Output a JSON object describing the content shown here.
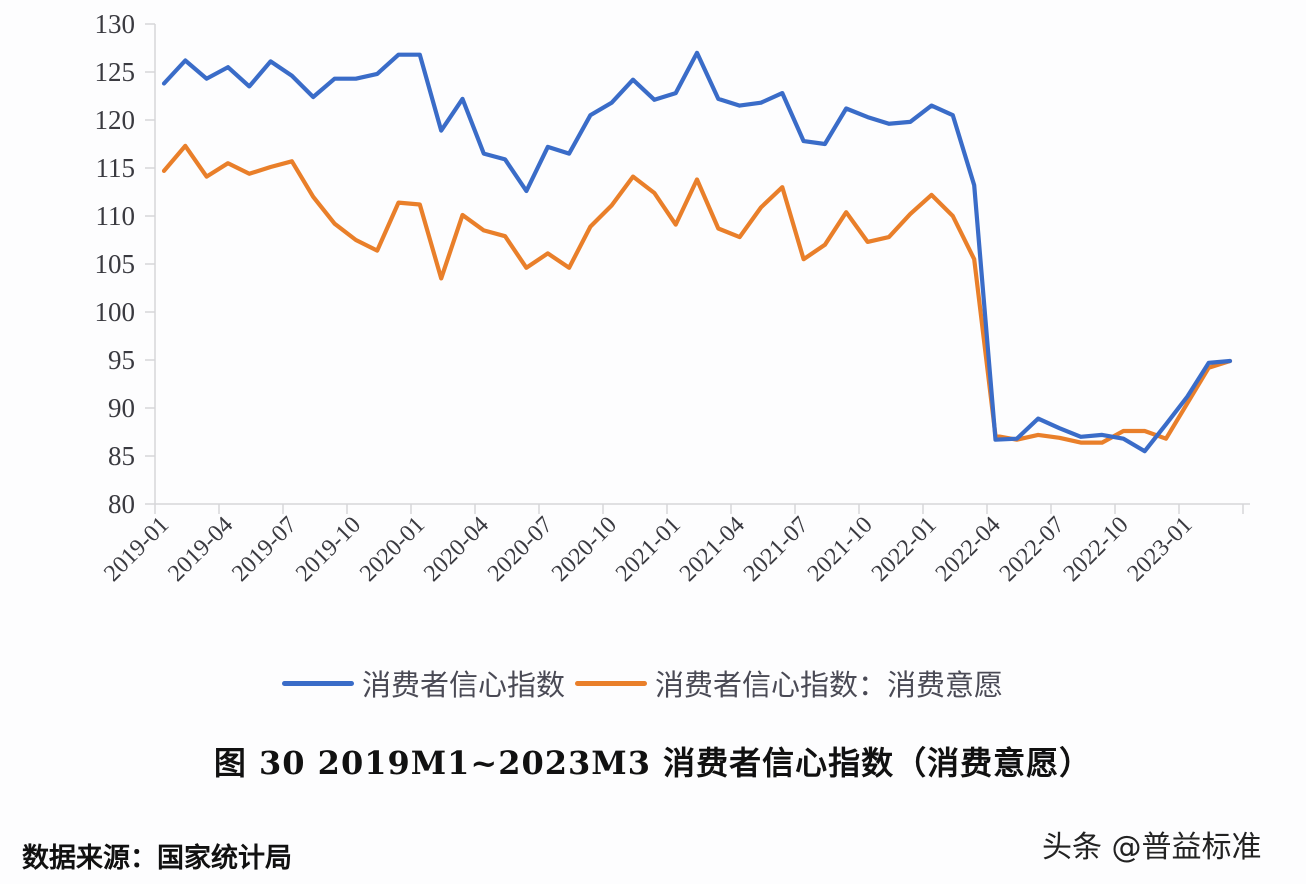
{
  "chart_data": {
    "type": "line",
    "title": "图 30   2019M1~2023M3 消费者信心指数（消费意愿）",
    "xlabel": "",
    "ylabel": "",
    "ylim": [
      80,
      130
    ],
    "yticks": [
      80,
      85,
      90,
      95,
      100,
      105,
      110,
      115,
      120,
      125,
      130
    ],
    "grid": false,
    "legend_position": "bottom",
    "x_tick_labels": [
      "2019-01",
      "2019-04",
      "2019-07",
      "2019-10",
      "2020-01",
      "2020-04",
      "2020-07",
      "2020-10",
      "2021-01",
      "2021-04",
      "2021-07",
      "2021-10",
      "2022-01",
      "2022-04",
      "2022-07",
      "2022-10",
      "2023-01"
    ],
    "x": [
      "2019-01",
      "2019-02",
      "2019-03",
      "2019-04",
      "2019-05",
      "2019-06",
      "2019-07",
      "2019-08",
      "2019-09",
      "2019-10",
      "2019-11",
      "2019-12",
      "2020-01",
      "2020-02",
      "2020-03",
      "2020-04",
      "2020-05",
      "2020-06",
      "2020-07",
      "2020-08",
      "2020-09",
      "2020-10",
      "2020-11",
      "2020-12",
      "2021-01",
      "2021-02",
      "2021-03",
      "2021-04",
      "2021-05",
      "2021-06",
      "2021-07",
      "2021-08",
      "2021-09",
      "2021-10",
      "2021-11",
      "2021-12",
      "2022-01",
      "2022-02",
      "2022-03",
      "2022-04",
      "2022-05",
      "2022-06",
      "2022-07",
      "2022-08",
      "2022-09",
      "2022-10",
      "2022-11",
      "2022-12",
      "2023-01",
      "2023-02",
      "2023-03"
    ],
    "series": [
      {
        "name": "消费者信心指数",
        "color": "#3a6cc8",
        "values": [
          123.8,
          126.2,
          124.3,
          125.5,
          123.5,
          126.1,
          124.6,
          122.4,
          124.3,
          124.3,
          124.8,
          126.8,
          126.8,
          118.9,
          122.2,
          116.5,
          115.9,
          112.6,
          117.2,
          116.5,
          120.5,
          121.8,
          124.2,
          122.1,
          122.8,
          127.0,
          122.2,
          121.5,
          121.8,
          122.8,
          117.8,
          117.5,
          121.2,
          120.3,
          119.6,
          119.8,
          121.5,
          120.5,
          113.2,
          86.7,
          86.8,
          88.9,
          87.9,
          87.0,
          87.2,
          86.8,
          85.5,
          88.3,
          91.2,
          94.7,
          94.9
        ]
      },
      {
        "name": "消费者信心指数：消费意愿",
        "color": "#e97f2a",
        "values": [
          114.7,
          117.3,
          114.1,
          115.5,
          114.4,
          115.1,
          115.7,
          112.0,
          109.2,
          107.5,
          106.4,
          111.4,
          111.2,
          103.5,
          110.1,
          108.5,
          107.9,
          104.6,
          106.1,
          104.6,
          108.9,
          111.1,
          114.1,
          112.4,
          109.1,
          113.8,
          108.7,
          107.8,
          110.9,
          113.0,
          105.5,
          107.0,
          110.4,
          107.3,
          107.8,
          110.2,
          112.2,
          110.0,
          105.5,
          87.1,
          86.7,
          87.2,
          86.9,
          86.4,
          86.4,
          87.6,
          87.6,
          86.8,
          90.5,
          94.2,
          94.9
        ]
      }
    ]
  },
  "legend": {
    "items": [
      {
        "label": "消费者信心指数",
        "color": "#3a6cc8"
      },
      {
        "label": "消费者信心指数：消费意愿",
        "color": "#e97f2a"
      }
    ]
  },
  "caption": "图 30   2019M1~2023M3 消费者信心指数（消费意愿）",
  "source": "数据来源：国家统计局",
  "watermark": "头条 @普益标准"
}
